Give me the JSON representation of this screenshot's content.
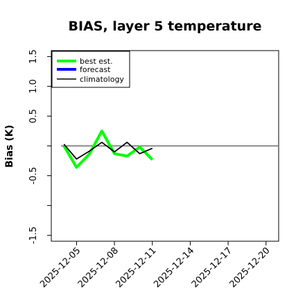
{
  "chart_data": {
    "type": "line",
    "title": "BIAS, layer 5 temperature",
    "xlabel": "",
    "ylabel": "Bias (K)",
    "ylim": [
      -1.6,
      1.6
    ],
    "yticks": [
      -1.5,
      -0.5,
      0.5,
      1.0,
      1.5
    ],
    "yticks_labeled": [
      "-1.5",
      "-0.5",
      "0.5",
      "1.0",
      "1.5"
    ],
    "ytick_positions_unlabeled": [
      -1.0,
      0.0
    ],
    "xlim": [
      "2025-12-03",
      "2025-12-21"
    ],
    "xticks": [
      "2025-12-05",
      "2025-12-08",
      "2025-12-11",
      "2025-12-14",
      "2025-12-17",
      "2025-12-20"
    ],
    "xtick_label_colors": [
      "#000000",
      "#000000",
      "#228B22",
      "#000000",
      "#000000",
      "#000000"
    ],
    "legend": {
      "position": "top-left",
      "entries": [
        {
          "label": "best est.",
          "color": "#00ff00"
        },
        {
          "label": "forecast",
          "color": "#0000ff"
        },
        {
          "label": "climatology",
          "color": "#000000"
        }
      ]
    },
    "reference_line": {
      "y": 0.0,
      "color": "#555555"
    },
    "series": [
      {
        "name": "best est.",
        "color": "#00ff00",
        "x": [
          "2025-12-04",
          "2025-12-05",
          "2025-12-06",
          "2025-12-07",
          "2025-12-08",
          "2025-12-09",
          "2025-12-10",
          "2025-12-11"
        ],
        "y": [
          0.0,
          -0.36,
          -0.14,
          0.25,
          -0.13,
          -0.17,
          -0.02,
          -0.23
        ]
      },
      {
        "name": "climatology",
        "color": "#000000",
        "x": [
          "2025-12-04",
          "2025-12-05",
          "2025-12-06",
          "2025-12-07",
          "2025-12-08",
          "2025-12-09",
          "2025-12-10",
          "2025-12-11"
        ],
        "y": [
          0.03,
          -0.22,
          -0.09,
          0.06,
          -0.1,
          0.06,
          -0.13,
          -0.04
        ]
      }
    ]
  }
}
